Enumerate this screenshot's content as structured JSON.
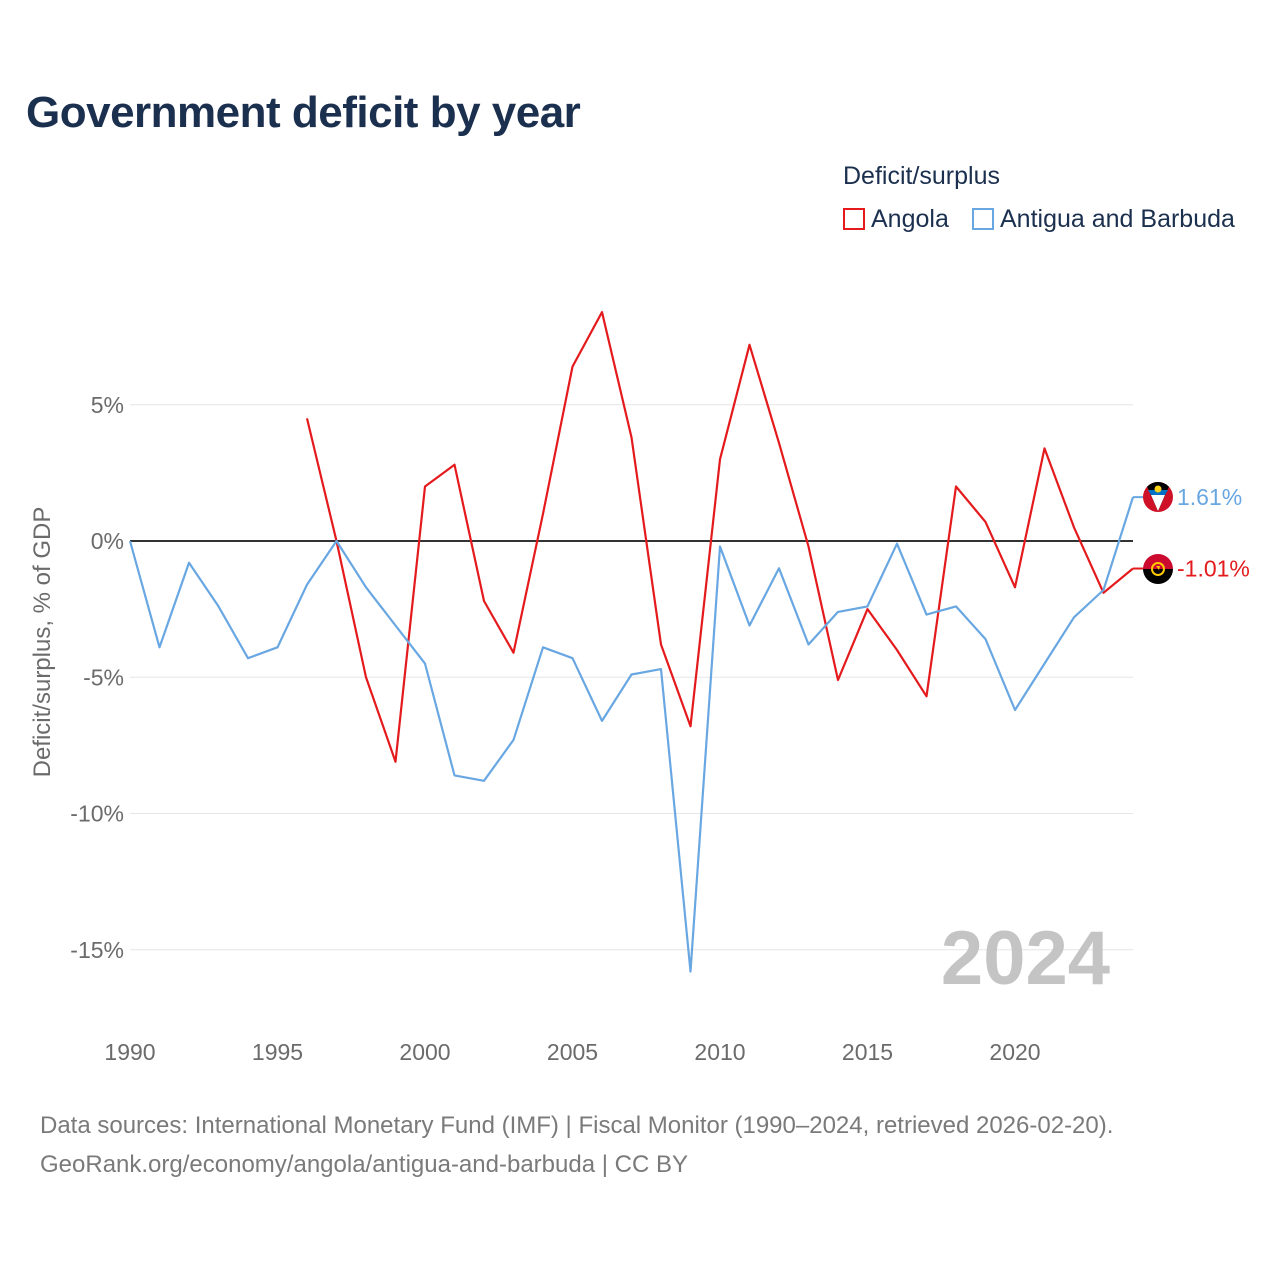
{
  "title": "Government deficit by year",
  "legend": {
    "title": "Deficit/surplus",
    "items": [
      {
        "label": "Angola",
        "color": "#e41a1c"
      },
      {
        "label": "Antigua and Barbuda",
        "color": "#69a7e2"
      }
    ]
  },
  "footer": {
    "line1": "Data sources: International Monetary Fund (IMF) | Fiscal Monitor (1990–2024, retrieved 2026-02-20).",
    "line2": "GeoRank.org/economy/angola/antigua-and-barbuda | CC BY"
  },
  "chart_data": {
    "type": "line",
    "title": "Government deficit by year",
    "xlabel": "",
    "ylabel": "Deficit/surplus, % of GDP",
    "xlim": [
      1990,
      2024
    ],
    "ylim": [
      -17,
      9
    ],
    "x_ticks": [
      1990,
      1995,
      2000,
      2005,
      2010,
      2015,
      2020
    ],
    "y_ticks": [
      {
        "value": 5,
        "label": "5%"
      },
      {
        "value": 0,
        "label": "0%"
      },
      {
        "value": -5,
        "label": "-5%"
      },
      {
        "value": -10,
        "label": "-10%"
      },
      {
        "value": -15,
        "label": "-15%"
      }
    ],
    "year_watermark": "2024",
    "series": [
      {
        "name": "Angola",
        "color": "#e41a1c",
        "end_label": "-1.01%",
        "x": [
          1996,
          1997,
          1998,
          1999,
          2000,
          2001,
          2002,
          2003,
          2004,
          2005,
          2006,
          2007,
          2008,
          2009,
          2010,
          2011,
          2012,
          2013,
          2014,
          2015,
          2016,
          2017,
          2018,
          2019,
          2020,
          2021,
          2022,
          2023,
          2024
        ],
        "values": [
          4.5,
          0.0,
          -5.0,
          -8.1,
          2.0,
          2.8,
          -2.2,
          -4.1,
          1.0,
          6.4,
          8.4,
          3.8,
          -3.8,
          -6.8,
          3.0,
          7.2,
          3.6,
          -0.2,
          -5.1,
          -2.5,
          -4.0,
          -5.7,
          2.0,
          0.7,
          -1.7,
          3.4,
          0.5,
          -1.9,
          -1.01
        ]
      },
      {
        "name": "Antigua and Barbuda",
        "color": "#69a7e2",
        "end_label": "1.61%",
        "x": [
          1990,
          1991,
          1992,
          1993,
          1994,
          1995,
          1996,
          1997,
          1998,
          1999,
          2000,
          2001,
          2002,
          2003,
          2004,
          2005,
          2006,
          2007,
          2008,
          2009,
          2010,
          2011,
          2012,
          2013,
          2014,
          2015,
          2016,
          2017,
          2018,
          2019,
          2020,
          2021,
          2022,
          2023,
          2024
        ],
        "values": [
          0.0,
          -3.9,
          -0.8,
          -2.4,
          -4.3,
          -3.9,
          -1.6,
          0.0,
          -1.7,
          -3.1,
          -4.5,
          -8.6,
          -8.8,
          -7.3,
          -3.9,
          -4.3,
          -6.6,
          -4.9,
          -4.7,
          -15.8,
          -0.2,
          -3.1,
          -1.0,
          -3.8,
          -2.6,
          -2.4,
          -0.1,
          -2.7,
          -2.4,
          -3.6,
          -6.2,
          -4.5,
          -2.8,
          -1.8,
          1.61
        ]
      }
    ]
  }
}
